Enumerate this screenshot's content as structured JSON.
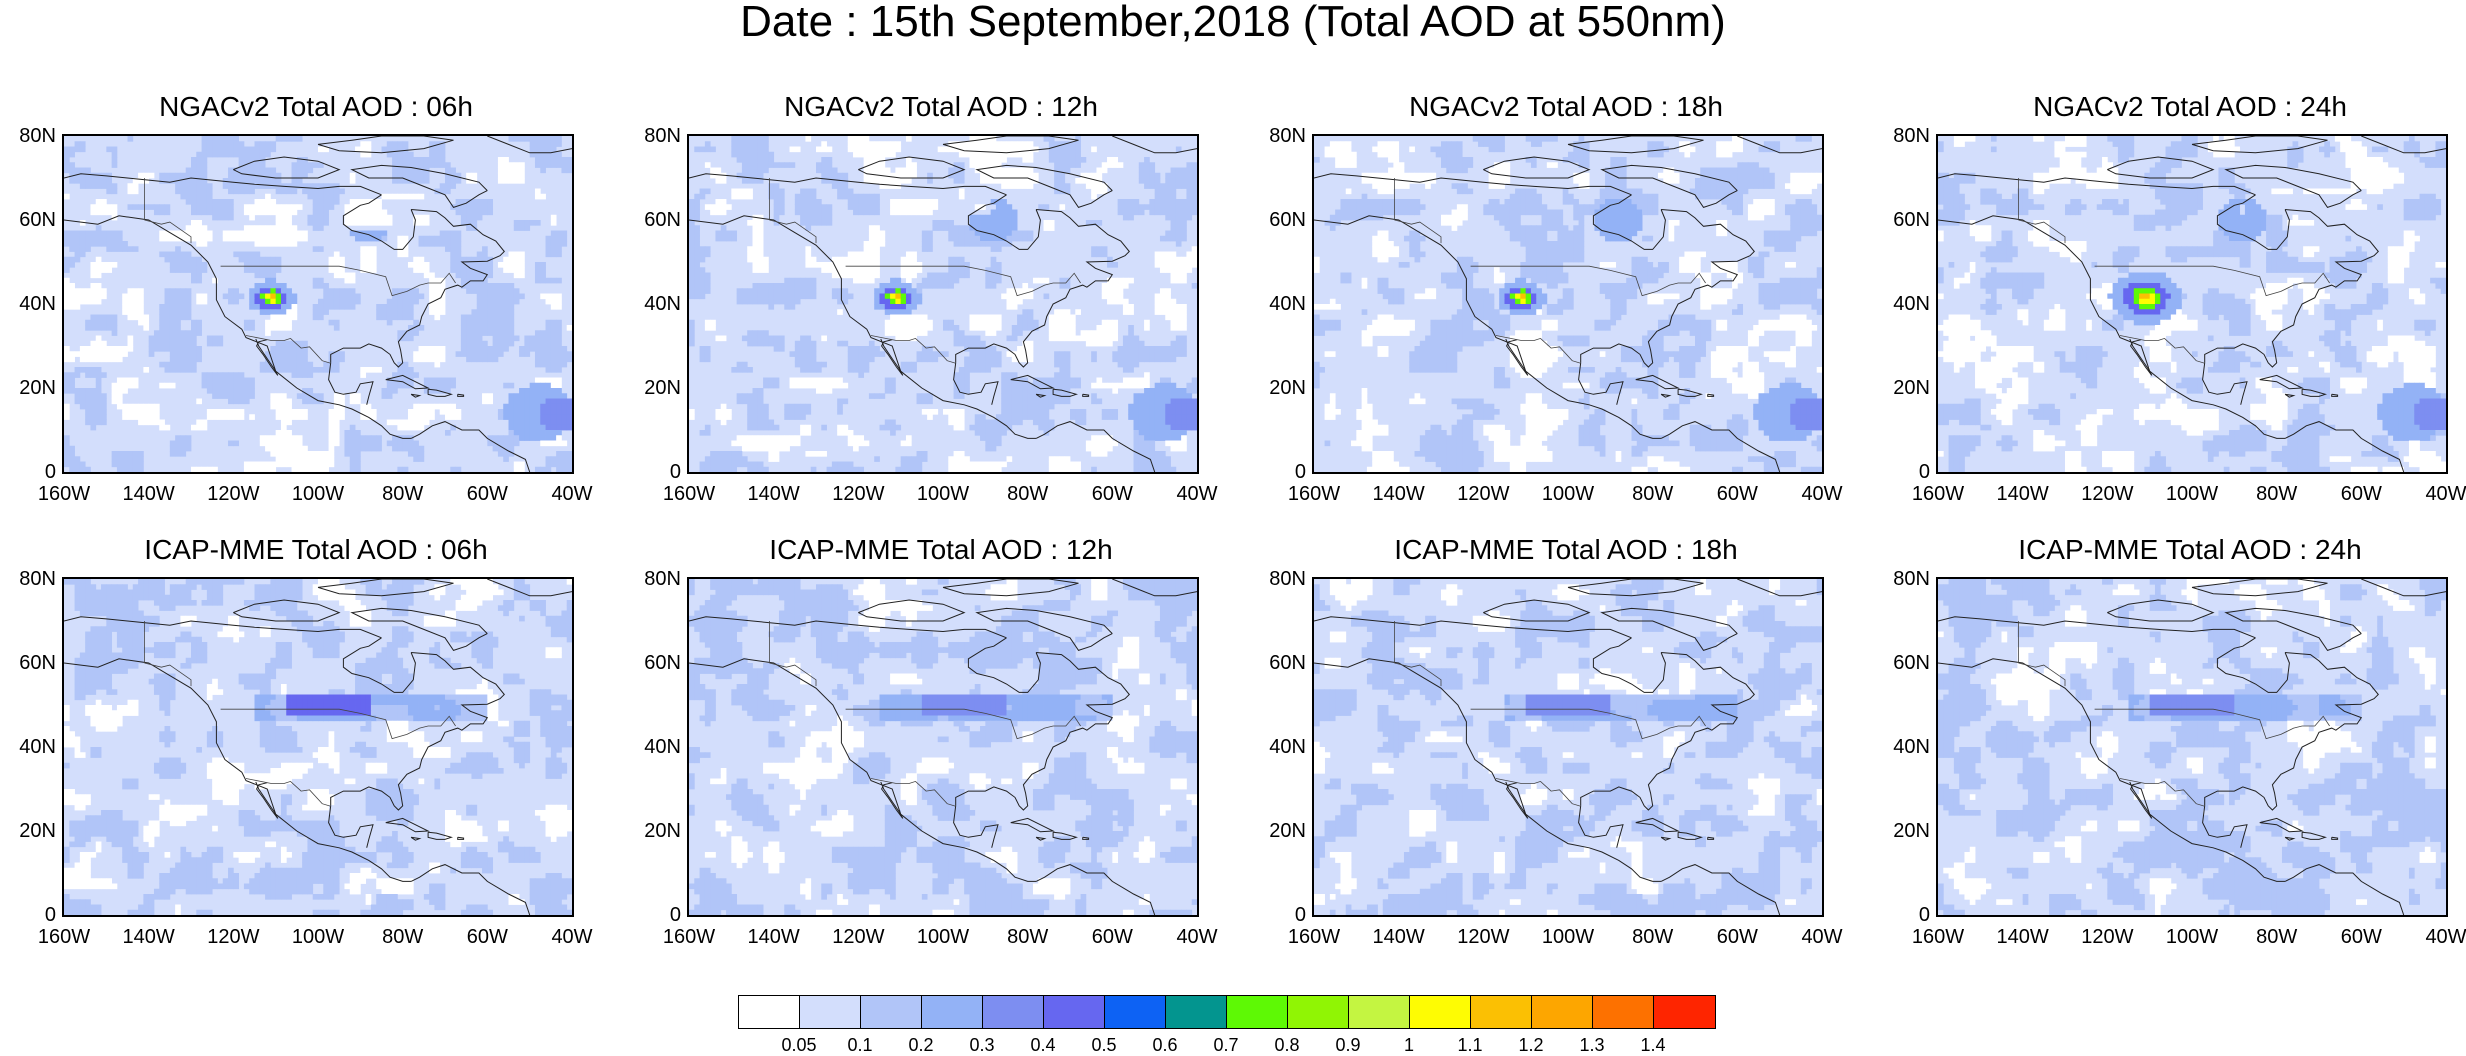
{
  "title": "Date : 15th September,2018 (Total AOD at 550nm)",
  "panels": [
    {
      "title": "NGACv2 Total AOD : 06h",
      "model": "ngac",
      "hour": 6
    },
    {
      "title": "NGACv2 Total AOD : 12h",
      "model": "ngac",
      "hour": 12
    },
    {
      "title": "NGACv2 Total AOD : 18h",
      "model": "ngac",
      "hour": 18
    },
    {
      "title": "NGACv2 Total AOD : 24h",
      "model": "ngac",
      "hour": 24
    },
    {
      "title": "ICAP-MME Total AOD : 06h",
      "model": "icap",
      "hour": 6
    },
    {
      "title": "ICAP-MME Total AOD : 12h",
      "model": "icap",
      "hour": 12
    },
    {
      "title": "ICAP-MME Total AOD : 18h",
      "model": "icap",
      "hour": 18
    },
    {
      "title": "ICAP-MME Total AOD : 24h",
      "model": "icap",
      "hour": 24
    }
  ],
  "axes": {
    "lat_ticks": [
      "80N",
      "60N",
      "40N",
      "20N",
      "0"
    ],
    "lon_ticks": [
      "160W",
      "140W",
      "120W",
      "100W",
      "80W",
      "60W",
      "40W"
    ]
  },
  "colorbar": {
    "colors": [
      "#ffffff",
      "#d3defc",
      "#b1c5f8",
      "#93b2f6",
      "#7d8ef1",
      "#6667f0",
      "#0d62f4",
      "#03958f",
      "#5ef905",
      "#90f504",
      "#c4f541",
      "#fefc03",
      "#fbc003",
      "#fda600",
      "#fd7100",
      "#fe2500"
    ],
    "labels": [
      "0.05",
      "0.1",
      "0.2",
      "0.3",
      "0.4",
      "0.5",
      "0.6",
      "0.7",
      "0.8",
      "0.9",
      "1",
      "1.1",
      "1.2",
      "1.3",
      "1.4"
    ]
  }
}
